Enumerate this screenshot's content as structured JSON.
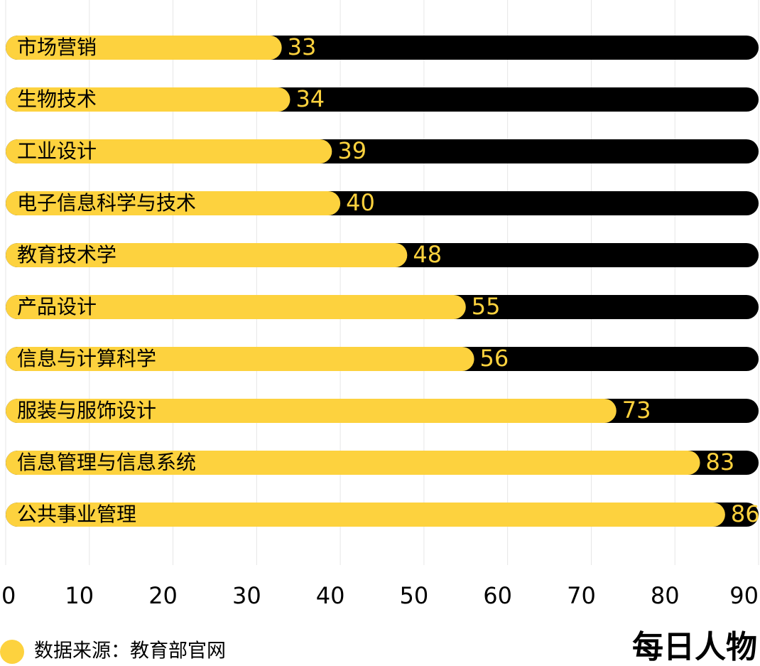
{
  "chart_data": {
    "type": "bar",
    "orientation": "horizontal",
    "categories": [
      "市场营销",
      "生物技术",
      "工业设计",
      "电子信息科学与技术",
      "教育技术学",
      "产品设计",
      "信息与计算科学",
      "服装与服饰设计",
      "信息管理与信息系统",
      "公共事业管理"
    ],
    "values": [
      33,
      34,
      39,
      40,
      48,
      55,
      56,
      73,
      83,
      86
    ],
    "color": "#fdd23e",
    "track_color": "#000000",
    "xlim": [
      0,
      90
    ],
    "xticks": [
      0,
      10,
      20,
      30,
      40,
      50,
      60,
      70,
      80,
      90
    ],
    "grid": true,
    "source": "数据来源：教育部官网",
    "logo": "每日人物"
  }
}
